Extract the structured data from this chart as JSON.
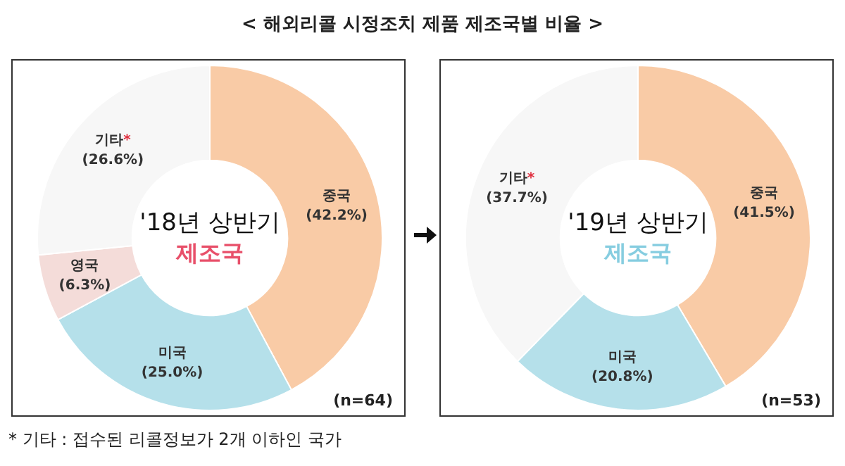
{
  "chart_data": [
    {
      "type": "donut",
      "title": "< 해외리콜 시정조치 제품 제조국별 비율 >",
      "categories": [
        "중국",
        "미국",
        "영국",
        "기타*"
      ],
      "values": [
        42.2,
        25.0,
        6.3,
        26.6
      ],
      "colors": [
        "#f9cba6",
        "#b5e0ea",
        "#f4dcd9",
        "#f7f7f7"
      ],
      "value_labels": [
        "(42.2%)",
        "(25.0%)",
        "(6.3%)",
        "(26.6%)"
      ],
      "annotations": [
        "'18년 상반기",
        "제조국",
        "(n=64)",
        "* 기타 : 접수된 리콜정보가 2개 이하인 국가"
      ]
    },
    {
      "type": "donut",
      "categories": [
        "중국",
        "미국",
        "기타*"
      ],
      "values": [
        41.5,
        20.8,
        37.7
      ],
      "colors": [
        "#f9cba6",
        "#b5e0ea",
        "#f7f7f7"
      ],
      "value_labels": [
        "(41.5%)",
        "(20.8%)",
        "(37.7%)"
      ],
      "annotations": [
        "'19년 상반기",
        "제조국",
        "(n=53)"
      ]
    }
  ]
}
